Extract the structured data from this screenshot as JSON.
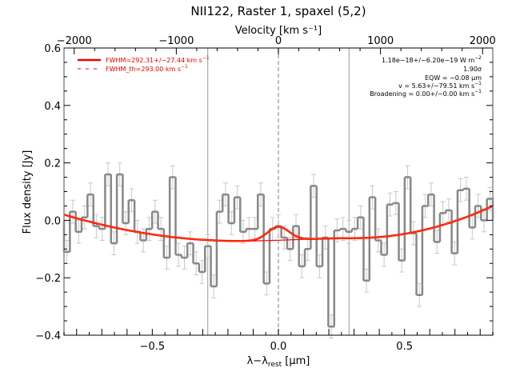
{
  "chart_data": {
    "type": "line",
    "title": "NII122, Raster 1, spaxel (5,2)",
    "xlabel": "λ−λrest [μm]",
    "xlabel_parts": {
      "lambda": "λ−λ",
      "sub": "rest",
      "unit": " [μm]"
    },
    "ylabel": "Flux density [Jy]",
    "top_xlabel": "Velocity [km s⁻¹]",
    "xlim": [
      -0.85,
      0.85
    ],
    "ylim": [
      -0.4,
      0.6
    ],
    "top_xlim": [
      -2100,
      2100
    ],
    "x_ticks": [
      -0.5,
      0.0,
      0.5
    ],
    "x_tick_labels": [
      "−0.5",
      "0.0",
      "0.5"
    ],
    "y_ticks": [
      -0.4,
      -0.2,
      0.0,
      0.2,
      0.4,
      0.6
    ],
    "y_tick_labels": [
      "−0.4",
      "−0.2",
      "0.0",
      "0.2",
      "0.4",
      "0.6"
    ],
    "top_ticks": [
      -2000,
      -1000,
      0,
      1000,
      2000
    ],
    "top_tick_labels": [
      "−2000",
      "−1000",
      "0",
      "1000",
      "2000"
    ],
    "grid": false,
    "spectrum": {
      "name": "data",
      "style": "histogram",
      "color": "#888888",
      "error": 0.04,
      "values": [
        -0.11,
        0.03,
        -0.04,
        0.01,
        0.09,
        -0.02,
        -0.03,
        0.16,
        -0.08,
        0.16,
        -0.01,
        0.07,
        -0.04,
        -0.07,
        -0.03,
        0.03,
        -0.03,
        -0.13,
        0.15,
        -0.12,
        -0.13,
        -0.08,
        -0.15,
        -0.18,
        -0.09,
        -0.23,
        0.03,
        0.09,
        -0.01,
        0.08,
        -0.04,
        -0.03,
        -0.03,
        0.09,
        -0.22,
        -0.03,
        -0.02,
        -0.06,
        -0.1,
        -0.02,
        -0.16,
        -0.1,
        0.12,
        -0.16,
        -0.06,
        -0.37,
        -0.035,
        -0.03,
        -0.04,
        -0.03,
        0.01,
        -0.21,
        0.08,
        -0.07,
        -0.12,
        0.055,
        0.06,
        -0.14,
        0.15,
        -0.045,
        -0.26,
        0.05,
        0.09,
        -0.075,
        0.025,
        0.035,
        -0.115,
        0.105,
        0.11,
        -0.025,
        0.05,
        0.0,
        0.075
      ]
    },
    "fit": {
      "name": "FWHM=292.31+/-27.44 km s-1",
      "color": "#ff0000",
      "baseline_points": [
        [
          -0.85,
          0.02
        ],
        [
          -0.15,
          -0.072
        ],
        [
          0.3,
          -0.062
        ],
        [
          0.85,
          0.05
        ]
      ],
      "gaussian": {
        "center": 0.0,
        "amplitude": 0.047,
        "fwhm": 0.1
      }
    },
    "vertical_lines": [
      {
        "x": -0.28,
        "style": "solid",
        "color": "#999999"
      },
      {
        "x": 0.0,
        "style": "dashed",
        "color": "#aaaaaa"
      },
      {
        "x": 0.28,
        "style": "solid",
        "color": "#999999"
      }
    ],
    "legend": {
      "position": "top-left",
      "entries": [
        {
          "label": "FWHM=292.31+/−27.44 km s",
          "sup": "−1",
          "style": "solid",
          "color": "#ee0000"
        },
        {
          "label": "FWHM_th=293.00 km s",
          "sup": "−1",
          "style": "dashed",
          "color": "#ee0000"
        }
      ]
    },
    "annotations": {
      "position": "top-right",
      "flux": {
        "text": "1.18e−18+/−6.20e−19 W m",
        "sup": "−2"
      },
      "sigma": {
        "text": "1.90σ"
      },
      "eqw": {
        "text": "EQW = −0.08 μm"
      },
      "velocity": {
        "text": "v = 5.63+/−79.51 km s",
        "sup": "−1"
      },
      "broadening": {
        "text": "Broadening = 0.00+/−0.00 km s",
        "sup": "−1"
      }
    }
  }
}
